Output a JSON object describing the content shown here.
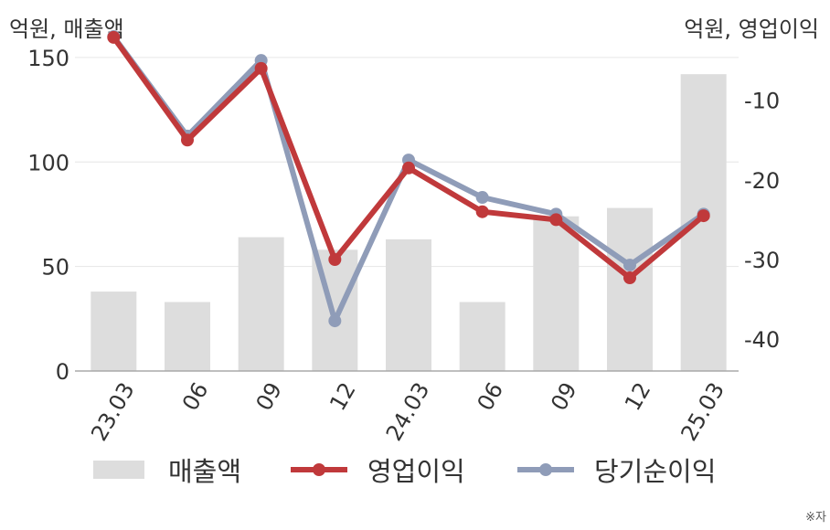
{
  "chart_data": {
    "type": "bar+line",
    "left_axis_unit": "억원, 매출액",
    "right_axis_unit": "억원, 영업이익",
    "categories": [
      "23.03",
      "06",
      "09",
      "12",
      "24.03",
      "06",
      "09",
      "12",
      "25.03"
    ],
    "left_axis": {
      "ticks": [
        0,
        50,
        100,
        150
      ],
      "range": [
        0,
        160
      ]
    },
    "right_axis": {
      "ticks": [
        -10,
        -20,
        -30,
        -40
      ],
      "range": [
        -44,
        -2
      ]
    },
    "series": [
      {
        "name": "매출액",
        "type": "bar",
        "axis": "left",
        "color": "#dddddd",
        "values": [
          38,
          33,
          64,
          58,
          63,
          33,
          74,
          78,
          142
        ]
      },
      {
        "name": "영업이익",
        "type": "line",
        "axis": "right",
        "color": "#c0393b",
        "values": [
          -2.1,
          -15.0,
          -6.0,
          -30.0,
          -18.5,
          -24.0,
          -25.0,
          -32.3,
          -24.5
        ]
      },
      {
        "name": "당기순이익",
        "type": "line",
        "axis": "right",
        "color": "#8f9cb8",
        "values": [
          -2.0,
          -14.5,
          -5.0,
          -37.7,
          -17.5,
          -22.2,
          -24.3,
          -30.7,
          -24.3
        ]
      }
    ],
    "grid": true,
    "legend_position": "bottom"
  },
  "legend": {
    "items": [
      {
        "label": "매출액",
        "color": "#dddddd",
        "kind": "bar"
      },
      {
        "label": "영업이익",
        "color": "#c0393b",
        "kind": "line"
      },
      {
        "label": "당기순이익",
        "color": "#8f9cb8",
        "kind": "line"
      }
    ]
  },
  "note": "※자"
}
